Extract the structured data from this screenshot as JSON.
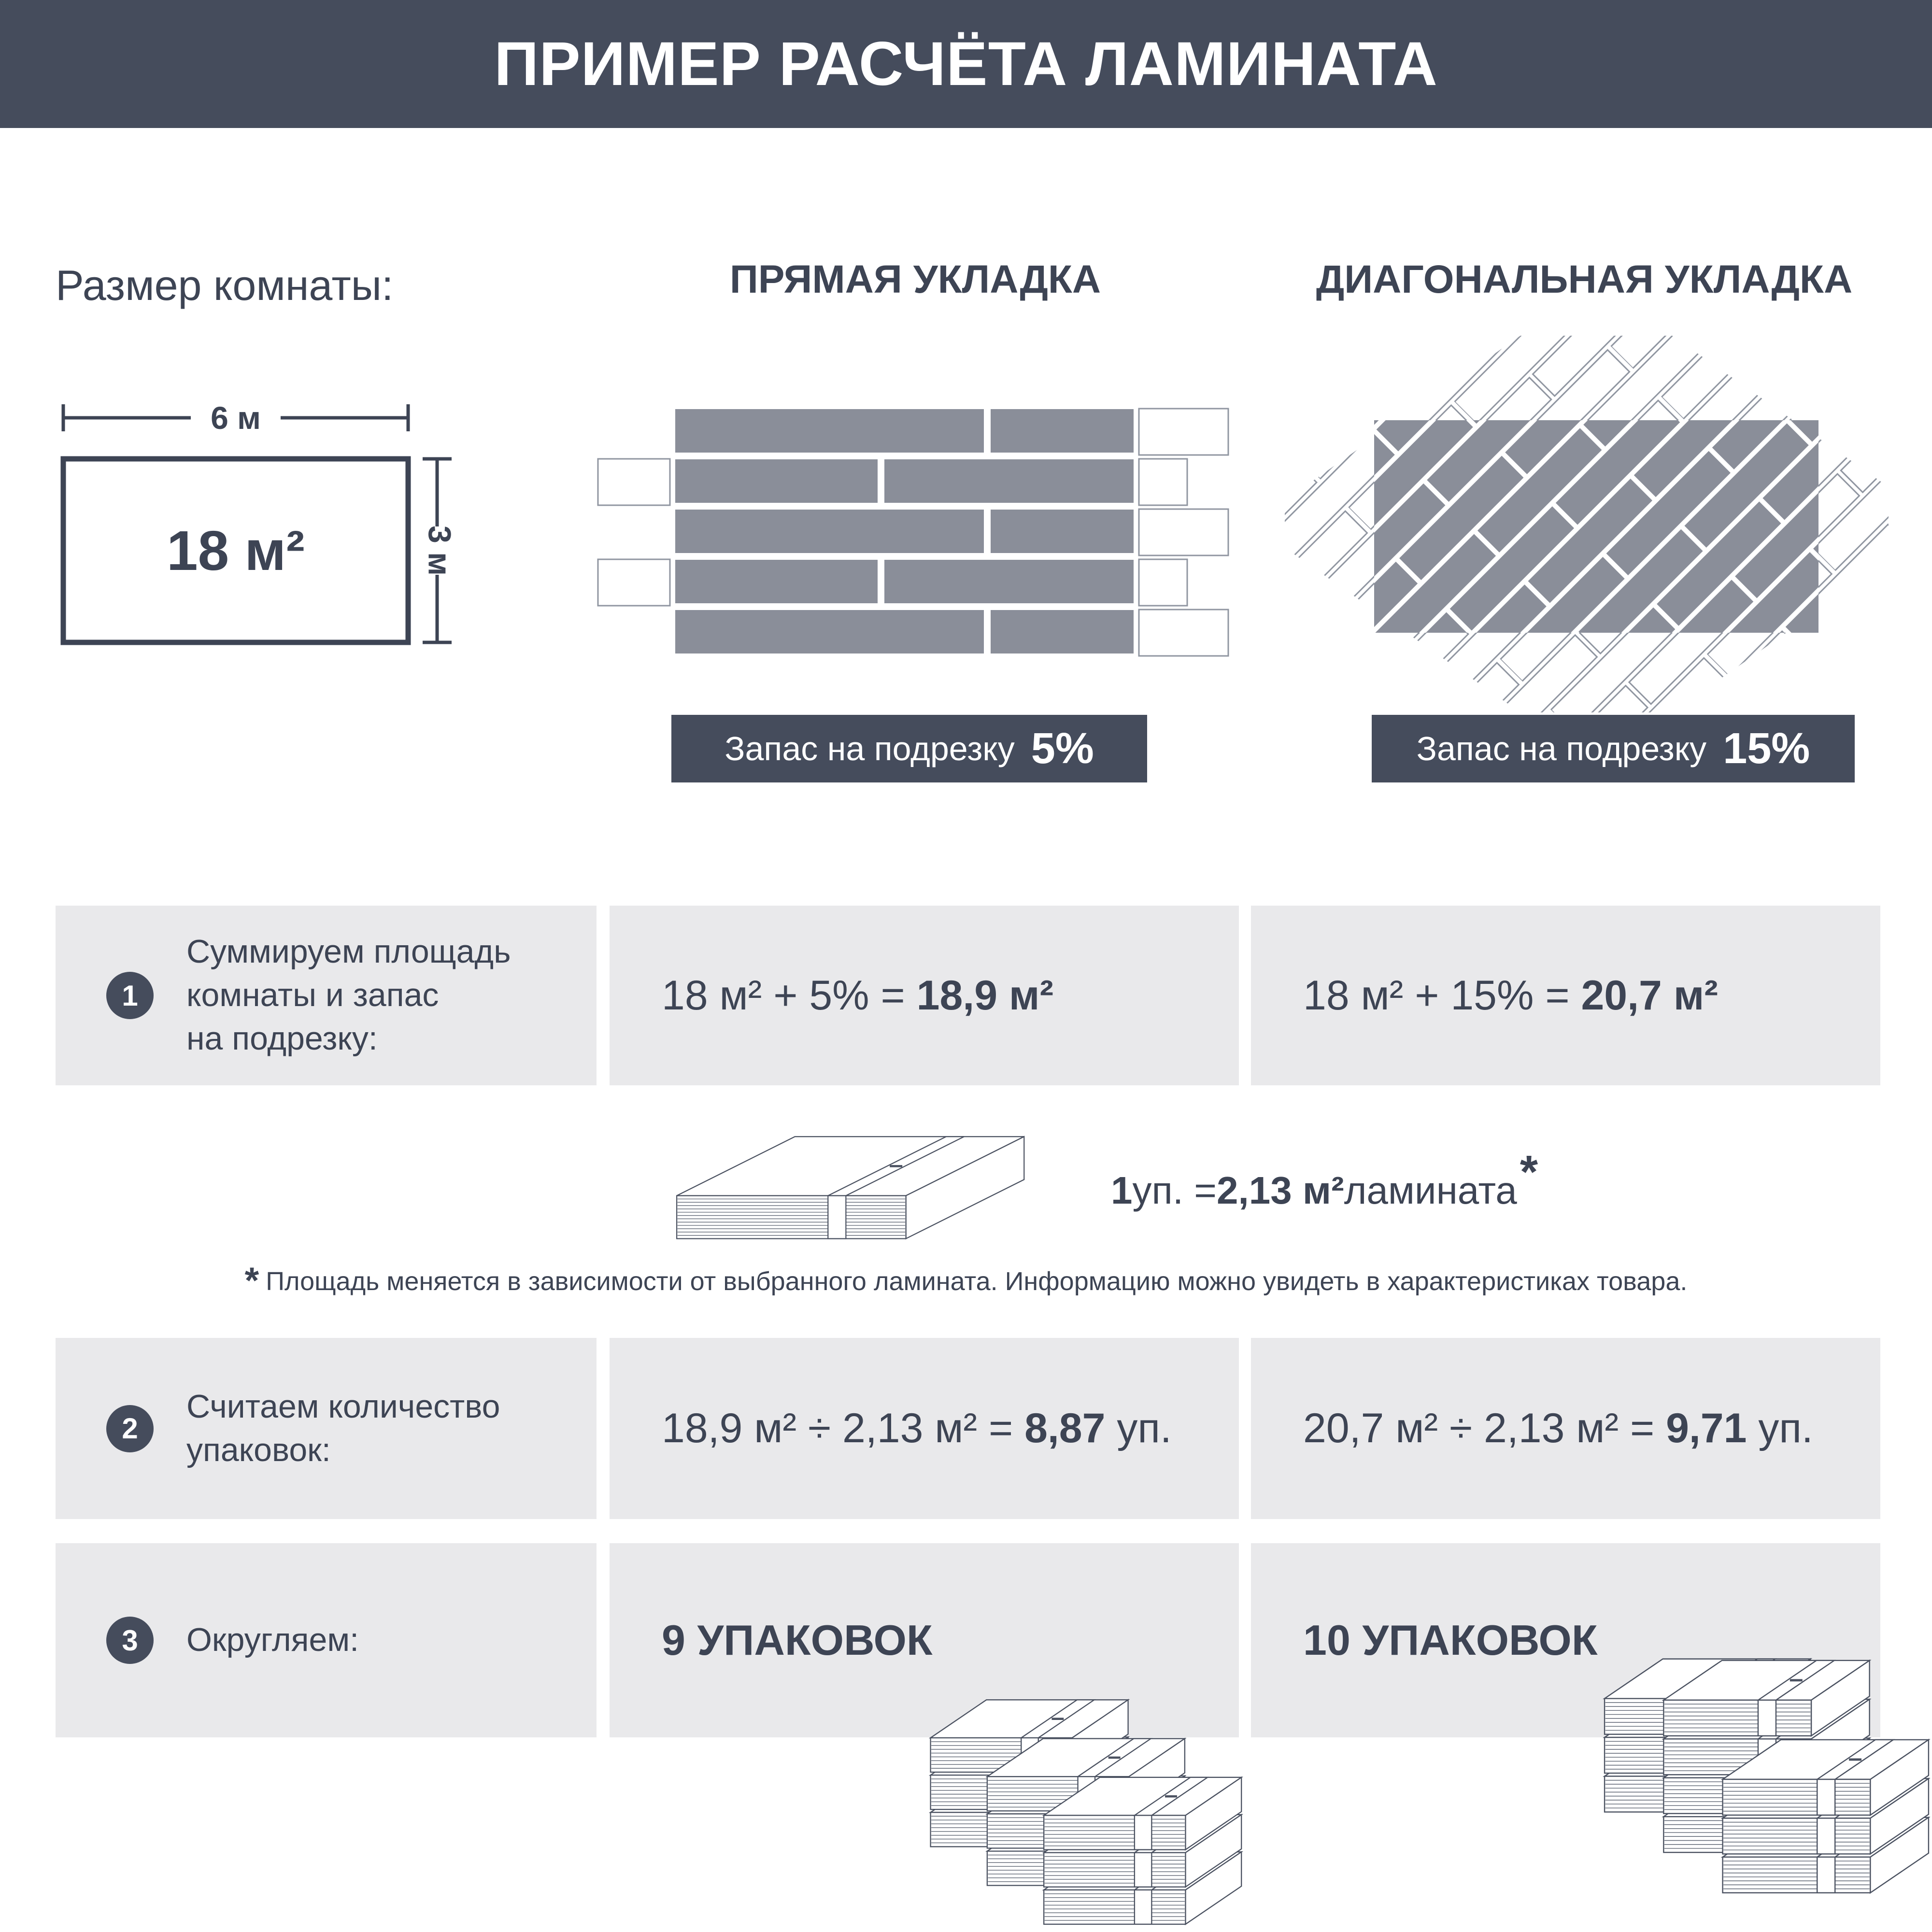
{
  "colors": {
    "dark": "#454c5c",
    "text": "#3d4454",
    "row_bg": "#e9e9eb",
    "plank": "#8a8e99"
  },
  "header": {
    "title": "ПРИМЕР РАСЧЁТА ЛАМИНАТА"
  },
  "room": {
    "label": "Размер комнаты:",
    "width_label": "6 м",
    "height_label": "3 м",
    "area_label": "18 м²"
  },
  "columns": {
    "straight": {
      "heading": "ПРЯМАЯ УКЛАДКА",
      "badge_text": "Запас на подрезку",
      "badge_value": "5%"
    },
    "diagonal": {
      "heading": "ДИАГОНАЛЬНАЯ УКЛАДКА",
      "badge_text": "Запас на подрезку",
      "badge_value": "15%"
    }
  },
  "steps": [
    {
      "number": "1",
      "label": "Суммируем площадь\nкомнаты и запас\nна подрезку:",
      "straight": {
        "pre": "18 м² + 5% = ",
        "bold": "18,9 м²"
      },
      "diagonal": {
        "pre": "18 м² + 15% = ",
        "bold": "20,7 м²"
      }
    },
    {
      "number": "2",
      "label": "Считаем количество\nупаковок:",
      "straight": {
        "pre": "18,9 м² ÷ 2,13 м² = ",
        "bold": "8,87",
        "post": " уп."
      },
      "diagonal": {
        "pre": "20,7 м² ÷ 2,13 м² = ",
        "bold": "9,71",
        "post": " уп."
      }
    },
    {
      "number": "3",
      "label": "Округляем:",
      "straight": {
        "bold": "9 УПАКОВОК"
      },
      "diagonal": {
        "bold": "10 УПАКОВОК"
      }
    }
  ],
  "package_info": {
    "qty": "1",
    "eq": " уп. = ",
    "area": "2,13 м²",
    "suffix": " ламината",
    "asterisk": "*"
  },
  "footnote": {
    "asterisk": "*",
    "text": "Площадь меняется в зависимости от выбранного ламината. Информацию можно увидеть в характеристиках товара."
  }
}
